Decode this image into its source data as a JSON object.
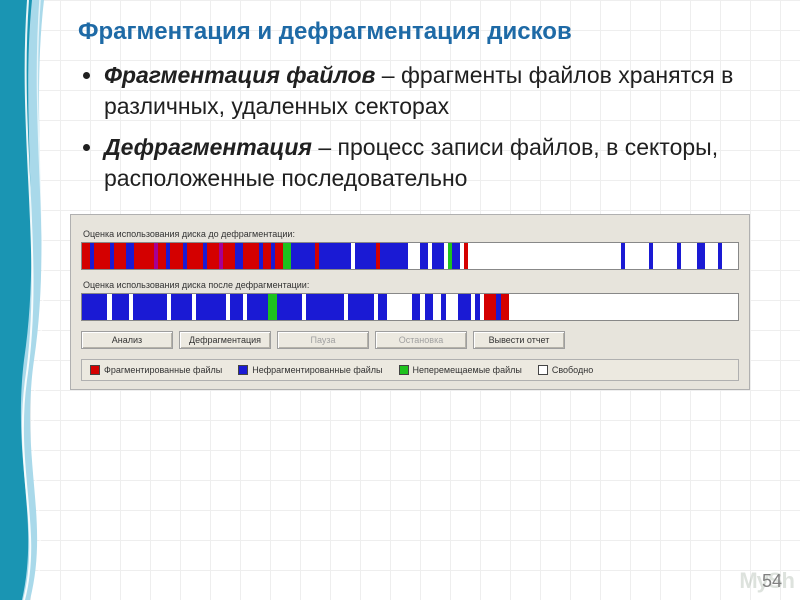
{
  "slide": {
    "title": "Фрагментация и дефрагментация дисков",
    "page_number": "54",
    "watermark": "MySh"
  },
  "bullets": [
    {
      "term": "Фрагментация файлов",
      "rest": " – фрагменты файлов хранятся в различных, удаленных секторах"
    },
    {
      "term": "Дефрагментация",
      "rest": " – процесс записи файлов, в секторы, расположенные последовательно"
    }
  ],
  "defrag": {
    "label_before": "Оценка использования диска до дефрагментации:",
    "label_after": "Оценка использования диска после дефрагментации:",
    "buttons": {
      "analyze": "Анализ",
      "defragment": "Дефрагментация",
      "pause": "Пауза",
      "stop": "Остановка",
      "report": "Вывести отчет"
    },
    "legend": {
      "fragmented": {
        "label": "Фрагментированные файлы",
        "color": "#d40000"
      },
      "nonfragmented": {
        "label": "Нефрагментированные файлы",
        "color": "#1a1ad4"
      },
      "unmovable": {
        "label": "Неперемещаемые файлы",
        "color": "#1ec21e"
      },
      "free": {
        "label": "Свободно",
        "color": "#ffffff"
      }
    },
    "bar_before": {
      "type": "striped-bar",
      "segments": [
        {
          "c": "#d40000",
          "w": 2
        },
        {
          "c": "#1a1ad4",
          "w": 1
        },
        {
          "c": "#d40000",
          "w": 4
        },
        {
          "c": "#1a1ad4",
          "w": 1
        },
        {
          "c": "#d40000",
          "w": 3
        },
        {
          "c": "#1a1ad4",
          "w": 2
        },
        {
          "c": "#d40000",
          "w": 5
        },
        {
          "c": "#a60094",
          "w": 1
        },
        {
          "c": "#d40000",
          "w": 2
        },
        {
          "c": "#1a1ad4",
          "w": 1
        },
        {
          "c": "#d40000",
          "w": 3
        },
        {
          "c": "#1a1ad4",
          "w": 1
        },
        {
          "c": "#d40000",
          "w": 4
        },
        {
          "c": "#1a1ad4",
          "w": 1
        },
        {
          "c": "#d40000",
          "w": 3
        },
        {
          "c": "#a60094",
          "w": 1
        },
        {
          "c": "#d40000",
          "w": 3
        },
        {
          "c": "#1a1ad4",
          "w": 2
        },
        {
          "c": "#d40000",
          "w": 4
        },
        {
          "c": "#1a1ad4",
          "w": 1
        },
        {
          "c": "#d40000",
          "w": 2
        },
        {
          "c": "#1a1ad4",
          "w": 1
        },
        {
          "c": "#d40000",
          "w": 2
        },
        {
          "c": "#1ec21e",
          "w": 2
        },
        {
          "c": "#1a1ad4",
          "w": 6
        },
        {
          "c": "#d40000",
          "w": 1
        },
        {
          "c": "#1a1ad4",
          "w": 8
        },
        {
          "c": "#ffffff",
          "w": 1
        },
        {
          "c": "#1a1ad4",
          "w": 5
        },
        {
          "c": "#d40000",
          "w": 1
        },
        {
          "c": "#1a1ad4",
          "w": 7
        },
        {
          "c": "#ffffff",
          "w": 3
        },
        {
          "c": "#1a1ad4",
          "w": 2
        },
        {
          "c": "#ffffff",
          "w": 1
        },
        {
          "c": "#1a1ad4",
          "w": 3
        },
        {
          "c": "#ffffff",
          "w": 1
        },
        {
          "c": "#1ec21e",
          "w": 1
        },
        {
          "c": "#1a1ad4",
          "w": 2
        },
        {
          "c": "#ffffff",
          "w": 1
        },
        {
          "c": "#d40000",
          "w": 1
        },
        {
          "c": "#ffffff",
          "w": 38
        },
        {
          "c": "#1a1ad4",
          "w": 1
        },
        {
          "c": "#ffffff",
          "w": 6
        },
        {
          "c": "#1a1ad4",
          "w": 1
        },
        {
          "c": "#ffffff",
          "w": 6
        },
        {
          "c": "#1a1ad4",
          "w": 1
        },
        {
          "c": "#ffffff",
          "w": 4
        },
        {
          "c": "#1a1ad4",
          "w": 2
        },
        {
          "c": "#ffffff",
          "w": 3
        },
        {
          "c": "#1a1ad4",
          "w": 1
        },
        {
          "c": "#ffffff",
          "w": 4
        }
      ]
    },
    "bar_after": {
      "type": "striped-bar",
      "segments": [
        {
          "c": "#1a1ad4",
          "w": 6
        },
        {
          "c": "#ffffff",
          "w": 1
        },
        {
          "c": "#1a1ad4",
          "w": 4
        },
        {
          "c": "#ffffff",
          "w": 1
        },
        {
          "c": "#1a1ad4",
          "w": 8
        },
        {
          "c": "#ffffff",
          "w": 1
        },
        {
          "c": "#1a1ad4",
          "w": 5
        },
        {
          "c": "#ffffff",
          "w": 1
        },
        {
          "c": "#1a1ad4",
          "w": 7
        },
        {
          "c": "#ffffff",
          "w": 1
        },
        {
          "c": "#1a1ad4",
          "w": 3
        },
        {
          "c": "#ffffff",
          "w": 1
        },
        {
          "c": "#1a1ad4",
          "w": 5
        },
        {
          "c": "#1ec21e",
          "w": 2
        },
        {
          "c": "#1a1ad4",
          "w": 6
        },
        {
          "c": "#ffffff",
          "w": 1
        },
        {
          "c": "#1a1ad4",
          "w": 9
        },
        {
          "c": "#ffffff",
          "w": 1
        },
        {
          "c": "#1a1ad4",
          "w": 6
        },
        {
          "c": "#ffffff",
          "w": 1
        },
        {
          "c": "#1a1ad4",
          "w": 2
        },
        {
          "c": "#ffffff",
          "w": 6
        },
        {
          "c": "#1a1ad4",
          "w": 2
        },
        {
          "c": "#ffffff",
          "w": 1
        },
        {
          "c": "#1a1ad4",
          "w": 2
        },
        {
          "c": "#ffffff",
          "w": 2
        },
        {
          "c": "#1a1ad4",
          "w": 1
        },
        {
          "c": "#ffffff",
          "w": 3
        },
        {
          "c": "#1a1ad4",
          "w": 3
        },
        {
          "c": "#ffffff",
          "w": 1
        },
        {
          "c": "#1a1ad4",
          "w": 1
        },
        {
          "c": "#ffffff",
          "w": 1
        },
        {
          "c": "#d40000",
          "w": 3
        },
        {
          "c": "#1a1ad4",
          "w": 1
        },
        {
          "c": "#d40000",
          "w": 2
        },
        {
          "c": "#ffffff",
          "w": 54
        }
      ]
    }
  },
  "colors": {
    "title": "#1e6aa6",
    "panel_bg": "#e7e4dc",
    "panel_border": "#b0b0b0",
    "wave_light": "#a9d9ea",
    "wave_dark": "#1a95b3"
  }
}
